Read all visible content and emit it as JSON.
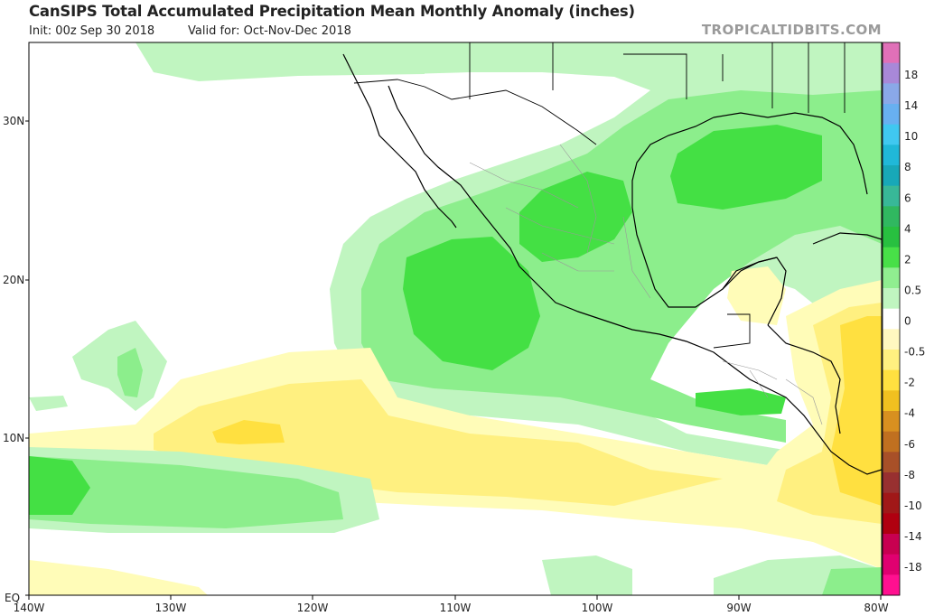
{
  "header": {
    "title": "CanSIPS Total Accumulated Precipitation Mean Monthly Anomaly (inches)",
    "init": "Init: 00z Sep 30 2018",
    "valid": "Valid for: Oct-Nov-Dec 2018",
    "brand": "TROPICALTIDBITS.COM"
  },
  "axes": {
    "lat_labels": [
      "30N",
      "20N",
      "10N",
      "EQ"
    ],
    "lon_labels": [
      "140W",
      "130W",
      "120W",
      "110W",
      "100W",
      "90W",
      "80W"
    ]
  },
  "colorbar": {
    "labels": [
      "18",
      "14",
      "10",
      "8",
      "6",
      "4",
      "2",
      "0.5",
      "0",
      "-0.5",
      "-2",
      "-4",
      "-6",
      "-8",
      "-10",
      "-14",
      "-18"
    ],
    "colors": [
      "#e070b8",
      "#a888d8",
      "#8aa8e8",
      "#68b0f0",
      "#40c8f0",
      "#20b8d8",
      "#18a8b8",
      "#38b898",
      "#30b860",
      "#28c040",
      "#48e048",
      "#90ee90",
      "#c0f5c0",
      "#ffffff",
      "#fff8c0",
      "#fff080",
      "#ffe040",
      "#f0c020",
      "#d89020",
      "#c07020",
      "#a85028",
      "#983030",
      "#a01818",
      "#b00010",
      "#c80050",
      "#e00070",
      "#ff1090"
    ]
  },
  "colors": {
    "light_green": "#c0f5c0",
    "mid_green": "#8cee8c",
    "strong_green": "#44e044",
    "light_yellow": "#fffcb8",
    "mid_yellow": "#fff080",
    "strong_yellow": "#ffe040"
  }
}
